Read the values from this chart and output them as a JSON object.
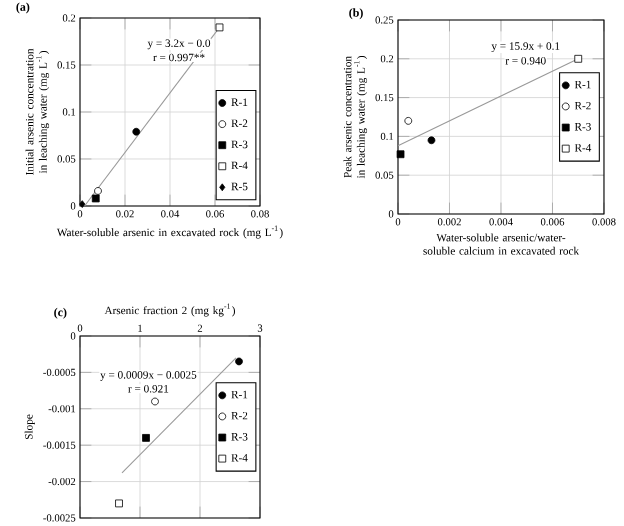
{
  "chart_data": [
    {
      "type": "scatter",
      "title": "(a)",
      "xlabel": "Water-soluble arsenic in excavated rock (mg L$^{-1}$)",
      "ylabel": "Initial arsenic concentration in leaching water (mg L$^{-1}$)",
      "xlim": [
        0,
        0.08
      ],
      "xticks": [
        0,
        0.02,
        0.04,
        0.06,
        0.08
      ],
      "ylim": [
        0,
        0.2
      ],
      "yticks": [
        0,
        0.05,
        0.1,
        0.15,
        0.2
      ],
      "grid": true,
      "legend": "bottom right",
      "annotations": [
        "y = 3.2x − 0.0",
        "r = 0.997**"
      ],
      "series": [
        {
          "type": "line",
          "color": "#999999",
          "marker": "none",
          "x": [
            0.002,
            0.062
          ],
          "values": [
            0,
            0.19
          ]
        },
        {
          "name": "R-1",
          "color": "#000000",
          "marker": "circle",
          "x": [
            0.025
          ],
          "values": [
            0.079
          ]
        },
        {
          "name": "R-2",
          "color": "#ffffff",
          "marker": "circle",
          "x": [
            0.008
          ],
          "values": [
            0.016
          ]
        },
        {
          "name": "R-3",
          "color": "#000000",
          "marker": "square",
          "x": [
            0.007
          ],
          "values": [
            0.008
          ]
        },
        {
          "name": "R-4",
          "color": "#ffffff",
          "marker": "square",
          "x": [
            0.062
          ],
          "values": [
            0.19
          ]
        },
        {
          "name": "R-5",
          "color": "#000000",
          "marker": "diamond",
          "x": [
            0.001
          ],
          "values": [
            0.002
          ]
        }
      ]
    },
    {
      "type": "scatter",
      "title": "(b)",
      "xlabel": "Water-soluble arsenic/water-soluble calcium in excavated rock",
      "ylabel": "Peak arsenic concentration in leaching water (mg L$^{-1}$)",
      "xlim": [
        0,
        0.008
      ],
      "xticks": [
        0,
        0.002,
        0.004,
        0.006,
        0.008
      ],
      "ylim": [
        0,
        0.25
      ],
      "yticks": [
        0,
        0.05,
        0.1,
        0.15,
        0.2,
        0.25
      ],
      "grid": true,
      "legend": "right",
      "annotations": [
        "y = 15.9x + 0.1",
        "r = 0.940"
      ],
      "series": [
        {
          "type": "line",
          "color": "#999999",
          "marker": "none",
          "x": [
            0,
            0.007
          ],
          "values": [
            0.088,
            0.2
          ]
        },
        {
          "name": "R-1",
          "color": "#000000",
          "marker": "circle",
          "x": [
            0.0013
          ],
          "values": [
            0.095
          ]
        },
        {
          "name": "R-2",
          "color": "#ffffff",
          "marker": "circle",
          "x": [
            0.0004
          ],
          "values": [
            0.12
          ]
        },
        {
          "name": "R-3",
          "color": "#000000",
          "marker": "square",
          "x": [
            0.0001
          ],
          "values": [
            0.077
          ]
        },
        {
          "name": "R-4",
          "color": "#ffffff",
          "marker": "square",
          "x": [
            0.007
          ],
          "values": [
            0.2
          ]
        }
      ]
    },
    {
      "type": "scatter",
      "title": "(c)",
      "xlabel": "Arsenic fraction 2 (mg kg$^{-1}$)",
      "ylabel": "Slope",
      "xlim": [
        0,
        3
      ],
      "xticks": [
        0,
        1,
        2,
        3
      ],
      "ylim": [
        -0.0025,
        0
      ],
      "yticks": [
        -0.0025,
        -0.002,
        -0.0015,
        -0.001,
        -0.0005,
        0
      ],
      "grid": true,
      "legend": "right",
      "annotations": [
        "y = 0.0009x − 0.0025",
        "r = 0.921"
      ],
      "series": [
        {
          "type": "line",
          "color": "#999999",
          "marker": "none",
          "x": [
            0.7,
            2.6
          ],
          "values": [
            -0.00188,
            -0.0003
          ]
        },
        {
          "name": "R-1",
          "color": "#000000",
          "marker": "circle",
          "x": [
            2.65
          ],
          "values": [
            -0.00035
          ]
        },
        {
          "name": "R-2",
          "color": "#ffffff",
          "marker": "circle",
          "x": [
            1.25
          ],
          "values": [
            -0.0009
          ]
        },
        {
          "name": "R-3",
          "color": "#000000",
          "marker": "square",
          "x": [
            1.1
          ],
          "values": [
            -0.0014
          ]
        },
        {
          "name": "R-4",
          "color": "#ffffff",
          "marker": "square",
          "x": [
            0.65
          ],
          "values": [
            -0.0023
          ]
        }
      ]
    }
  ]
}
